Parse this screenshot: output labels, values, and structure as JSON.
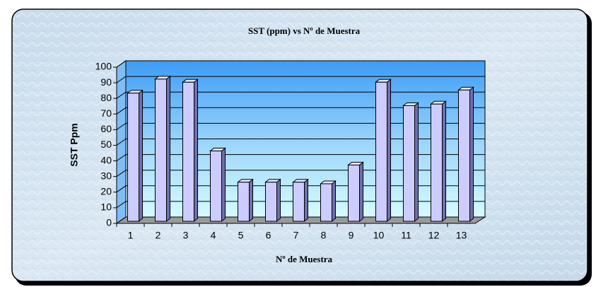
{
  "chart_data": {
    "type": "bar",
    "title": "SST (ppm) vs Nº de Muestra",
    "x_label": "Nº de Muestra",
    "y_label": "SST Ppm",
    "categories": [
      "1",
      "2",
      "3",
      "4",
      "5",
      "6",
      "7",
      "8",
      "9",
      "10",
      "11",
      "12",
      "13"
    ],
    "values": [
      82,
      91,
      89,
      45,
      25,
      25,
      25,
      24,
      36,
      89,
      74,
      75,
      84
    ],
    "color": "#ccccff",
    "ylim": [
      0,
      100
    ],
    "yticks": [
      0,
      10,
      20,
      30,
      40,
      50,
      60,
      70,
      80,
      90,
      100
    ],
    "grid": true
  }
}
